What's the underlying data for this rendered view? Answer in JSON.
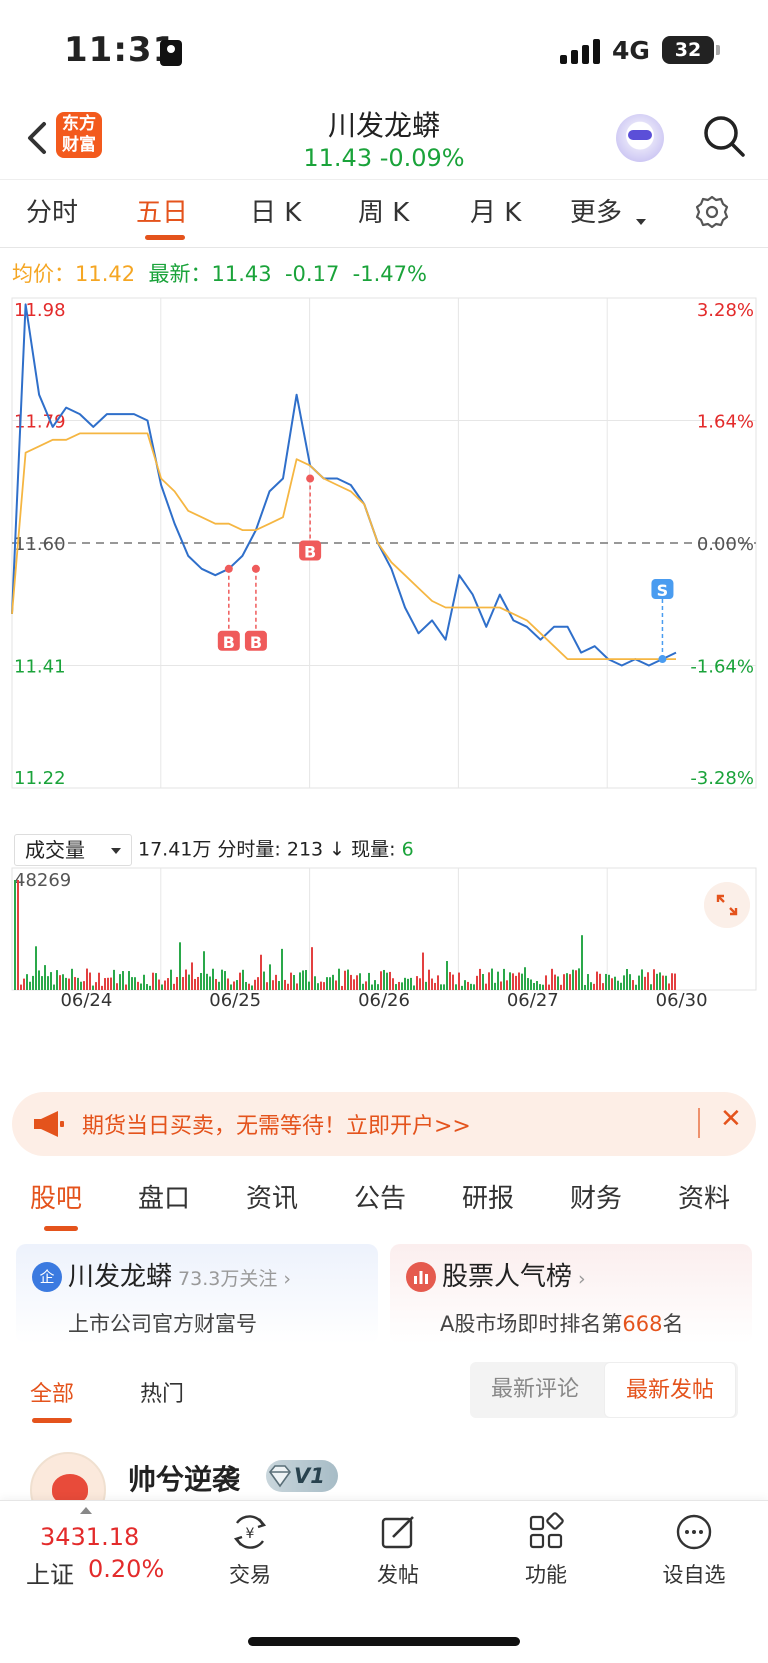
{
  "status_bar": {
    "time": "11:31",
    "network": "4G",
    "battery": "32"
  },
  "header": {
    "back_icon": "chevron-left-icon",
    "logo_text": [
      "东方",
      "财富"
    ],
    "stock_name": "川发龙蟒",
    "quote": "11.43  -0.09%"
  },
  "period_tabs": {
    "items": [
      "分时",
      "五日",
      "日 K",
      "周 K",
      "月 K",
      "更多"
    ],
    "active": "五日"
  },
  "price_info": {
    "avg_label": "均价：",
    "avg_value": "11.42",
    "latest_label": "最新：",
    "latest_value": "11.43",
    "change": "-0.17",
    "change_pct": "-1.47%"
  },
  "chart_data": {
    "type": "line",
    "x_ticks": [
      "06/24",
      "06/25",
      "06/26",
      "06/27",
      "06/30"
    ],
    "y_left_ticks": [
      "11.98",
      "11.79",
      "11.60",
      "11.41",
      "11.22"
    ],
    "y_right_ticks": [
      "3.28%",
      "1.64%",
      "0.00%",
      "-1.64%",
      "-3.28%"
    ],
    "ylim": [
      11.22,
      11.98
    ],
    "base_price": 11.6,
    "series": [
      {
        "color": "#2f6fca",
        "values": [
          11.49,
          11.97,
          11.83,
          11.78,
          11.81,
          11.8,
          11.78,
          11.8,
          11.8,
          11.8,
          11.79,
          11.69,
          11.63,
          11.58,
          11.56,
          11.55,
          11.56,
          11.58,
          11.62,
          11.68,
          11.7,
          11.83,
          11.72,
          11.7,
          11.7,
          11.69,
          11.66,
          11.6,
          11.56,
          11.5,
          11.46,
          11.48,
          11.45,
          11.55,
          11.52,
          11.47,
          11.52,
          11.48,
          11.47,
          11.45,
          11.47,
          11.47,
          11.43,
          11.44,
          11.42,
          11.41,
          11.42,
          11.41,
          11.42,
          11.43
        ]
      },
      {
        "color": "#f5b642",
        "values": [
          11.49,
          11.74,
          11.75,
          11.76,
          11.76,
          11.77,
          11.77,
          11.77,
          11.77,
          11.77,
          11.77,
          11.7,
          11.68,
          11.65,
          11.64,
          11.63,
          11.63,
          11.62,
          11.62,
          11.63,
          11.64,
          11.73,
          11.72,
          11.7,
          11.69,
          11.68,
          11.66,
          11.6,
          11.57,
          11.55,
          11.53,
          11.51,
          11.5,
          11.5,
          11.5,
          11.5,
          11.5,
          11.49,
          11.48,
          11.46,
          11.44,
          11.42,
          11.42,
          11.42,
          11.42,
          11.42,
          11.42,
          11.42,
          11.42,
          11.42
        ]
      }
    ],
    "markers": [
      {
        "label": "B",
        "index": 16,
        "value": 11.56
      },
      {
        "label": "B",
        "index": 18,
        "value": 11.56
      },
      {
        "label": "B",
        "index": 22,
        "value": 11.7
      },
      {
        "label": "S",
        "index": 48,
        "value": 11.42
      }
    ],
    "volume_max_label": "48269"
  },
  "volume": {
    "selector": "成交量",
    "info": "17.41万 分时量: 213 ↓ 现量: ",
    "now_value": "6"
  },
  "banner": {
    "text": "期货当日买卖，无需等待！立即开户>>",
    "close": "✕"
  },
  "content_tabs": {
    "items": [
      "股吧",
      "盘口",
      "资讯",
      "公告",
      "研报",
      "财务",
      "资料"
    ],
    "active": "股吧"
  },
  "cards": {
    "left": {
      "icon_text": "企",
      "title": "川发龙蟒",
      "follow": "73.3万关注",
      "arrow": "›",
      "sub": "上市公司官方财富号"
    },
    "right": {
      "title": "股票人气榜",
      "arrow": "›",
      "sub_prefix": "A股市场即时排名第",
      "rank": "668",
      "sub_suffix": "名"
    }
  },
  "sub_tabs": {
    "all": "全部",
    "hot": "热门",
    "sort_comment": "最新评论",
    "sort_post": "最新发帖"
  },
  "post": {
    "user": "帅兮逆袭",
    "level": "V1"
  },
  "bottom_bar": {
    "index_value": "3431.18",
    "index_name": "上证",
    "index_pct": "0.20%",
    "nav": [
      "交易",
      "发帖",
      "功能",
      "设自选"
    ]
  }
}
